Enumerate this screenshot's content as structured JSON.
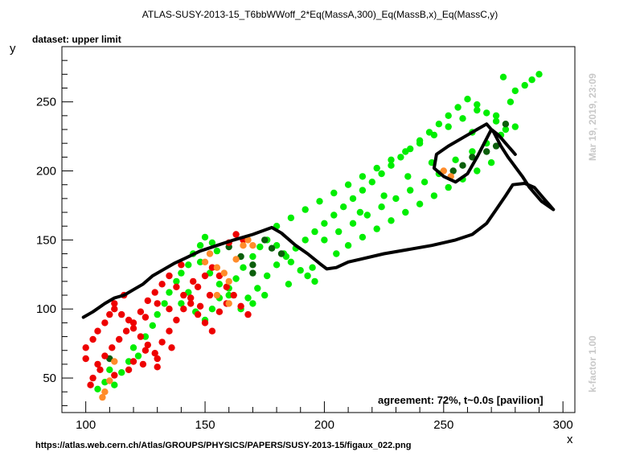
{
  "header": {
    "title": "ATLAS-SUSY-2013-15_T6bbWWoff_2*Eq(MassA,300)_Eq(MassB,x)_Eq(MassC,y)",
    "subtitle": "dataset: upper limit",
    "agreement": "agreement: 72%, t~0.0s [pavilion]",
    "timestamp": "Mar 19, 2019, 23:09",
    "kfactor": "k-factor 1.00",
    "source_url": "https://atlas.web.cern.ch/Atlas/GROUPS/PHYSICS/PAPERS/SUSY-2013-15/figaux_022.png"
  },
  "chart_data": {
    "type": "scatter",
    "title": "ATLAS-SUSY-2013-15_T6bbWWoff_2*Eq(MassA,300)_Eq(MassB,x)_Eq(MassC,y)",
    "xlabel": "x",
    "ylabel": "y",
    "xlim": [
      90,
      305
    ],
    "ylim": [
      25,
      290
    ],
    "xticks": [
      100,
      150,
      200,
      250,
      300
    ],
    "yticks": [
      50,
      100,
      150,
      200,
      250
    ],
    "grid": false,
    "colors": {
      "bright_green": "#00ee00",
      "dark_green": "#0b5e0b",
      "red": "#ee0000",
      "orange": "#ff8c2a",
      "contour": "#000000"
    },
    "series": [
      {
        "color": "bright_green",
        "points": [
          [
            105,
            42
          ],
          [
            108,
            47
          ],
          [
            110,
            56
          ],
          [
            112,
            45
          ],
          [
            115,
            54
          ],
          [
            118,
            62
          ],
          [
            120,
            72
          ],
          [
            122,
            66
          ],
          [
            125,
            80
          ],
          [
            128,
            88
          ],
          [
            130,
            96
          ],
          [
            133,
            104
          ],
          [
            135,
            112
          ],
          [
            138,
            120
          ],
          [
            140,
            126
          ],
          [
            143,
            132
          ],
          [
            145,
            140
          ],
          [
            148,
            146
          ],
          [
            150,
            152
          ],
          [
            153,
            148
          ],
          [
            155,
            142
          ],
          [
            140,
            104
          ],
          [
            143,
            112
          ],
          [
            146,
            98
          ],
          [
            150,
            92
          ],
          [
            153,
            100
          ],
          [
            156,
            108
          ],
          [
            160,
            115
          ],
          [
            163,
            122
          ],
          [
            166,
            130
          ],
          [
            170,
            138
          ],
          [
            173,
            145
          ],
          [
            176,
            150
          ],
          [
            180,
            146
          ],
          [
            183,
            140
          ],
          [
            186,
            134
          ],
          [
            190,
            128
          ],
          [
            193,
            124
          ],
          [
            196,
            120
          ],
          [
            165,
            100
          ],
          [
            168,
            108
          ],
          [
            172,
            115
          ],
          [
            176,
            124
          ],
          [
            180,
            132
          ],
          [
            184,
            138
          ],
          [
            188,
            144
          ],
          [
            192,
            150
          ],
          [
            196,
            156
          ],
          [
            200,
            162
          ],
          [
            204,
            168
          ],
          [
            208,
            174
          ],
          [
            212,
            180
          ],
          [
            216,
            186
          ],
          [
            220,
            192
          ],
          [
            224,
            198
          ],
          [
            228,
            204
          ],
          [
            232,
            210
          ],
          [
            236,
            216
          ],
          [
            240,
            222
          ],
          [
            244,
            228
          ],
          [
            248,
            234
          ],
          [
            252,
            240
          ],
          [
            256,
            246
          ],
          [
            260,
            252
          ],
          [
            264,
            248
          ],
          [
            268,
            242
          ],
          [
            272,
            236
          ],
          [
            276,
            230
          ],
          [
            280,
            258
          ],
          [
            284,
            262
          ],
          [
            287,
            266
          ],
          [
            290,
            270
          ],
          [
            180,
            160
          ],
          [
            186,
            166
          ],
          [
            192,
            172
          ],
          [
            198,
            178
          ],
          [
            204,
            184
          ],
          [
            210,
            190
          ],
          [
            216,
            196
          ],
          [
            222,
            202
          ],
          [
            228,
            208
          ],
          [
            234,
            214
          ],
          [
            240,
            220
          ],
          [
            246,
            226
          ],
          [
            252,
            232
          ],
          [
            258,
            238
          ],
          [
            264,
            244
          ],
          [
            200,
            150
          ],
          [
            206,
            156
          ],
          [
            212,
            162
          ],
          [
            218,
            168
          ],
          [
            224,
            174
          ],
          [
            230,
            180
          ],
          [
            236,
            186
          ],
          [
            242,
            192
          ],
          [
            248,
            198
          ],
          [
            255,
            208
          ],
          [
            262,
            214
          ],
          [
            268,
            220
          ],
          [
            274,
            226
          ],
          [
            280,
            232
          ],
          [
            205,
            140
          ],
          [
            210,
            146
          ],
          [
            216,
            152
          ],
          [
            222,
            158
          ],
          [
            228,
            164
          ],
          [
            234,
            170
          ],
          [
            240,
            176
          ],
          [
            246,
            182
          ],
          [
            252,
            188
          ],
          [
            258,
            194
          ],
          [
            264,
            200
          ],
          [
            270,
            206
          ],
          [
            148,
            134
          ],
          [
            152,
            126
          ],
          [
            156,
            118
          ],
          [
            160,
            110
          ],
          [
            170,
            104
          ],
          [
            175,
            110
          ],
          [
            185,
            118
          ],
          [
            195,
            130
          ],
          [
            215,
            170
          ],
          [
            225,
            182
          ],
          [
            235,
            196
          ],
          [
            245,
            206
          ],
          [
            262,
            228
          ],
          [
            272,
            240
          ],
          [
            278,
            250
          ],
          [
            275,
            268
          ]
        ]
      },
      {
        "color": "dark_green",
        "points": [
          [
            110,
            64
          ],
          [
            160,
            145
          ],
          [
            165,
            138
          ],
          [
            170,
            126
          ],
          [
            170,
            132
          ],
          [
            175,
            150
          ],
          [
            178,
            144
          ],
          [
            182,
            140
          ],
          [
            254,
            200
          ],
          [
            258,
            204
          ],
          [
            262,
            210
          ],
          [
            268,
            214
          ],
          [
            272,
            218
          ],
          [
            276,
            234
          ]
        ]
      },
      {
        "color": "red",
        "points": [
          [
            100,
            72
          ],
          [
            103,
            78
          ],
          [
            105,
            84
          ],
          [
            108,
            90
          ],
          [
            110,
            96
          ],
          [
            112,
            100
          ],
          [
            115,
            96
          ],
          [
            118,
            92
          ],
          [
            120,
            86
          ],
          [
            123,
            80
          ],
          [
            126,
            74
          ],
          [
            129,
            68
          ],
          [
            132,
            76
          ],
          [
            135,
            84
          ],
          [
            138,
            92
          ],
          [
            141,
            100
          ],
          [
            144,
            108
          ],
          [
            147,
            116
          ],
          [
            150,
            124
          ],
          [
            153,
            130
          ],
          [
            156,
            124
          ],
          [
            159,
            116
          ],
          [
            162,
            110
          ],
          [
            165,
            102
          ],
          [
            168,
            96
          ],
          [
            105,
            60
          ],
          [
            108,
            66
          ],
          [
            111,
            72
          ],
          [
            114,
            78
          ],
          [
            117,
            84
          ],
          [
            120,
            90
          ],
          [
            123,
            98
          ],
          [
            126,
            106
          ],
          [
            129,
            112
          ],
          [
            132,
            118
          ],
          [
            135,
            124
          ],
          [
            138,
            116
          ],
          [
            141,
            110
          ],
          [
            144,
            104
          ],
          [
            147,
            96
          ],
          [
            150,
            90
          ],
          [
            153,
            84
          ],
          [
            156,
            98
          ],
          [
            159,
            104
          ],
          [
            145,
            120
          ],
          [
            140,
            132
          ],
          [
            120,
            62
          ],
          [
            125,
            70
          ],
          [
            130,
            58
          ],
          [
            103,
            50
          ],
          [
            106,
            56
          ],
          [
            102,
            45
          ],
          [
            112,
            52
          ],
          [
            118,
            56
          ],
          [
            124,
            60
          ],
          [
            130,
            64
          ],
          [
            136,
            72
          ],
          [
            160,
            148
          ],
          [
            163,
            154
          ],
          [
            166,
            150
          ],
          [
            112,
            104
          ],
          [
            116,
            110
          ],
          [
            100,
            64
          ],
          [
            135,
            100
          ],
          [
            130,
            104
          ],
          [
            125,
            94
          ],
          [
            152,
            110
          ],
          [
            148,
            102
          ]
        ]
      },
      {
        "color": "orange",
        "points": [
          [
            107,
            36
          ],
          [
            108,
            40
          ],
          [
            110,
            48
          ],
          [
            112,
            62
          ],
          [
            150,
            134
          ],
          [
            152,
            140
          ],
          [
            155,
            130
          ],
          [
            158,
            126
          ],
          [
            160,
            120
          ],
          [
            163,
            136
          ],
          [
            166,
            146
          ],
          [
            168,
            150
          ],
          [
            170,
            146
          ],
          [
            155,
            110
          ],
          [
            160,
            104
          ],
          [
            250,
            200
          ],
          [
            253,
            196
          ]
        ]
      }
    ],
    "contour": [
      [
        99,
        94
      ],
      [
        103,
        98
      ],
      [
        108,
        104
      ],
      [
        112,
        108
      ],
      [
        116,
        110
      ],
      [
        120,
        114
      ],
      [
        124,
        118
      ],
      [
        128,
        124
      ],
      [
        132,
        128
      ],
      [
        137,
        133
      ],
      [
        142,
        137
      ],
      [
        148,
        142
      ],
      [
        155,
        146
      ],
      [
        162,
        150
      ],
      [
        170,
        154
      ],
      [
        178,
        159
      ],
      [
        182,
        155
      ],
      [
        188,
        146
      ],
      [
        193,
        140
      ],
      [
        198,
        133
      ],
      [
        201,
        129
      ],
      [
        205,
        130
      ],
      [
        210,
        134
      ],
      [
        215,
        136
      ],
      [
        225,
        140
      ],
      [
        235,
        143
      ],
      [
        245,
        146
      ],
      [
        255,
        150
      ],
      [
        262,
        154
      ],
      [
        268,
        162
      ],
      [
        272,
        172
      ],
      [
        276,
        182
      ],
      [
        279,
        190
      ],
      [
        284,
        191
      ],
      [
        288,
        188
      ],
      [
        292,
        180
      ],
      [
        296,
        172
      ],
      [
        291,
        178
      ],
      [
        286,
        188
      ],
      [
        283,
        196
      ],
      [
        280,
        203
      ],
      [
        277,
        210
      ],
      [
        274,
        218
      ],
      [
        271,
        228
      ],
      [
        268,
        234
      ],
      [
        264,
        230
      ],
      [
        258,
        224
      ],
      [
        252,
        218
      ],
      [
        247,
        212
      ],
      [
        246,
        202
      ],
      [
        250,
        196
      ],
      [
        255,
        192
      ],
      [
        260,
        198
      ],
      [
        264,
        210
      ],
      [
        267,
        220
      ],
      [
        270,
        230
      ],
      [
        273,
        226
      ],
      [
        276,
        220
      ],
      [
        280,
        212
      ]
    ]
  }
}
